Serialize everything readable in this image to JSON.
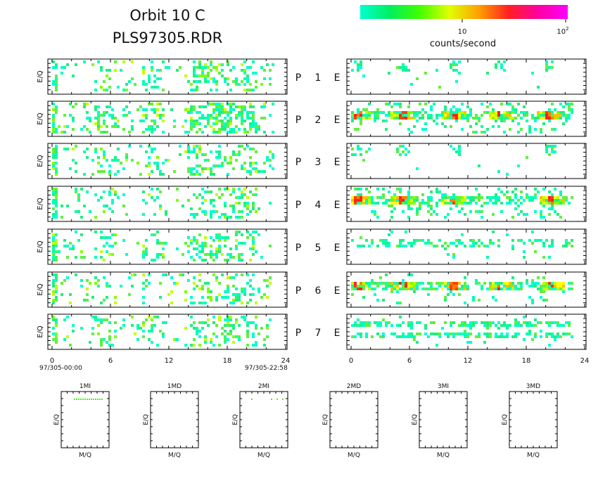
{
  "title": {
    "line1": "Orbit 10 C",
    "line2": "PLS97305.RDR"
  },
  "colorbar": {
    "label": "counts/second",
    "tick_mid": "10",
    "tick_high_base": "10",
    "tick_high_exp": "2",
    "stops": [
      "#00ffd0",
      "#00f060",
      "#40ff00",
      "#e0ff00",
      "#ffa000",
      "#ff2020",
      "#ff00a0",
      "#ff00ff"
    ]
  },
  "panel_labels": {
    "ylabel": "E/Q",
    "p": "P",
    "e": "E"
  },
  "time_axis": {
    "ticks": [
      "0",
      "6",
      "12",
      "18",
      "24"
    ],
    "start_label": "97/305-00:00",
    "end_label": "97/305-22:58"
  },
  "chart_data": [
    {
      "type": "heatmap",
      "group": "left-panels",
      "xlabel": "",
      "ylabel": "E/Q",
      "xlim": [
        0,
        24
      ],
      "panels": [
        {
          "name": "1",
          "active_hours": [
            [
              0,
              22.8
            ]
          ],
          "hot_spots": []
        },
        {
          "name": "2",
          "active_hours": [
            [
              0,
              22.8
            ]
          ],
          "hot_spots": []
        },
        {
          "name": "3",
          "active_hours": [
            [
              0,
              22.8
            ]
          ],
          "hot_spots": []
        },
        {
          "name": "4",
          "active_hours": [
            [
              0,
              22.8
            ]
          ],
          "hot_spots": []
        },
        {
          "name": "5",
          "active_hours": [
            [
              0,
              22.8
            ]
          ],
          "hot_spots": []
        },
        {
          "name": "6",
          "active_hours": [
            [
              0,
              22.8
            ]
          ],
          "hot_spots": []
        },
        {
          "name": "7",
          "active_hours": [
            [
              0,
              22.8
            ]
          ],
          "hot_spots": []
        }
      ]
    },
    {
      "type": "heatmap",
      "group": "right-panels",
      "xlim": [
        0,
        24
      ],
      "panels": [
        {
          "name": "1",
          "active_hours": [
            [
              0,
              21
            ]
          ],
          "hot_spots": []
        },
        {
          "name": "2",
          "active_hours": [
            [
              0,
              22.8
            ]
          ],
          "hot_spots": [
            0.5,
            5.2,
            10.5,
            15.2,
            20.3
          ]
        },
        {
          "name": "3",
          "active_hours": [
            [
              0,
              21
            ]
          ],
          "hot_spots": []
        },
        {
          "name": "4",
          "active_hours": [
            [
              0,
              22.8
            ]
          ],
          "hot_spots": [
            0.5,
            5.2,
            10.3,
            20.4
          ]
        },
        {
          "name": "5",
          "active_hours": [
            [
              0,
              22.8
            ]
          ],
          "hot_spots": []
        },
        {
          "name": "6",
          "active_hours": [
            [
              0,
              22.8
            ]
          ],
          "hot_spots": [
            0.5,
            5.2,
            10.3,
            15.2,
            20.4
          ]
        },
        {
          "name": "7",
          "active_hours": [
            [
              0,
              22.8
            ]
          ],
          "hot_spots": []
        }
      ]
    }
  ],
  "mass_panels": [
    {
      "title": "1MI",
      "xlabel": "M/Q",
      "ylabel": "E/Q",
      "has_dots": true
    },
    {
      "title": "1MD",
      "xlabel": "M/Q",
      "ylabel": "E/Q",
      "has_dots": false
    },
    {
      "title": "2MI",
      "xlabel": "M/Q",
      "ylabel": "E/Q",
      "has_dots": true
    },
    {
      "title": "2MD",
      "xlabel": "M/Q",
      "ylabel": "E/Q",
      "has_dots": false
    },
    {
      "title": "3MI",
      "xlabel": "M/Q",
      "ylabel": "E/Q",
      "has_dots": false
    },
    {
      "title": "3MD",
      "xlabel": "M/Q",
      "ylabel": "E/Q",
      "has_dots": false
    }
  ]
}
